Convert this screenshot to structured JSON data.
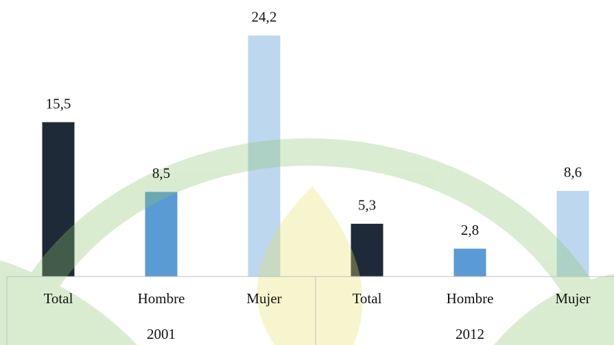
{
  "chart_data": {
    "type": "bar",
    "categories": [
      "Total",
      "Hombre",
      "Mujer",
      "Total",
      "Hombre",
      "Mujer"
    ],
    "groups": [
      "2001",
      "2012"
    ],
    "values": [
      15.5,
      8.5,
      24.2,
      5.3,
      2.8,
      8.6
    ],
    "value_labels": [
      "15,5",
      "8,5",
      "24,2",
      "5,3",
      "2,8",
      "8,6"
    ],
    "colors": [
      "#1f2a38",
      "#5b9bd5",
      "#bdd7ee",
      "#1f2a38",
      "#5b9bd5",
      "#bdd7ee"
    ]
  }
}
